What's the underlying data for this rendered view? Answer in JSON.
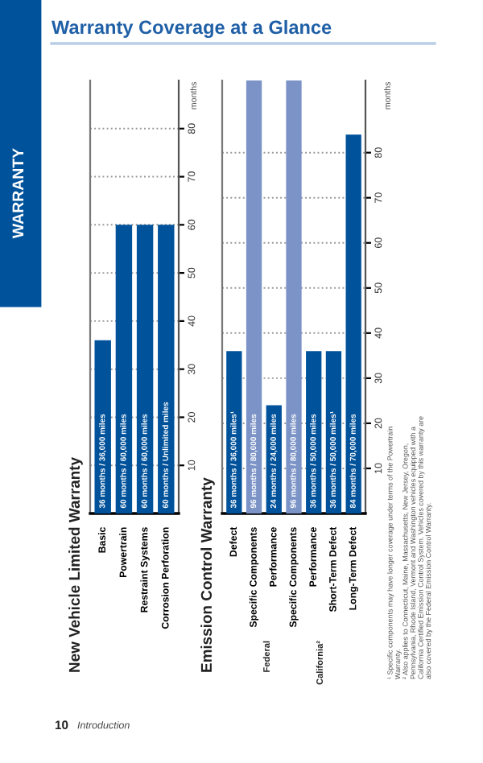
{
  "chart_data": [
    {
      "type": "bar",
      "title": "New Vehicle Limited Warranty",
      "ylabel": "months",
      "categories": [
        "Basic",
        "Powertrain",
        "Restraint Systems",
        "Corrosion Perforation"
      ],
      "values": [
        36,
        60,
        60,
        60
      ],
      "colors": [
        "#00529b",
        "#00529b",
        "#00529b",
        "#00529b"
      ],
      "value_labels": [
        "36 months / 36,000 miles",
        "60 months / 60,000 miles",
        "60 months / 60,000 miles",
        "60 months / Unlimited miles"
      ],
      "ylim": [
        0,
        90
      ],
      "yticks": [
        10,
        20,
        30,
        40,
        50,
        60,
        70,
        80
      ],
      "grid": "y",
      "annotations": [
        "Warranty Coverage at a Glance",
        "WARRANTY",
        "10",
        "Introduction"
      ]
    },
    {
      "type": "bar",
      "title": "Emission Control Warranty",
      "ylabel": "months",
      "categories": [
        "Defect",
        "Specific Components",
        "Performance",
        "Specific Components",
        "Performance",
        "Short-Term Defect",
        "Long-Term Defect"
      ],
      "values": [
        36,
        96,
        24,
        96,
        36,
        36,
        84
      ],
      "colors": [
        "#00529b",
        "#7b93c6",
        "#00529b",
        "#7b93c6",
        "#00529b",
        "#00529b",
        "#00529b"
      ],
      "value_labels": [
        "36 months / 36,000 miles¹",
        "96 months / 80,000 miles",
        "24 months / 24,000 miles",
        "96 months / 80,000 miles",
        "36 months / 50,000 miles",
        "36 months / 50,000 miles¹",
        "84 months / 70,000 miles"
      ],
      "ylim": [
        0,
        96
      ],
      "yticks": [
        10,
        20,
        30,
        40,
        50,
        60,
        70,
        80
      ],
      "grid": "y",
      "annotations": [
        "Federal",
        "California²",
        "¹ Specific components may have longer coverage under terms of the Powertrain Warranty.",
        "² Also applies to Connecticut, Maine, Massachusetts, New Jersey, Oregon, Pennsylvania, Rhode Island, Vermont and Washington vehicles equipped with a California Certified Emission Control System. Vehicles covered by this warranty are also covered by the Federal Emission Control Warranty."
      ]
    }
  ]
}
